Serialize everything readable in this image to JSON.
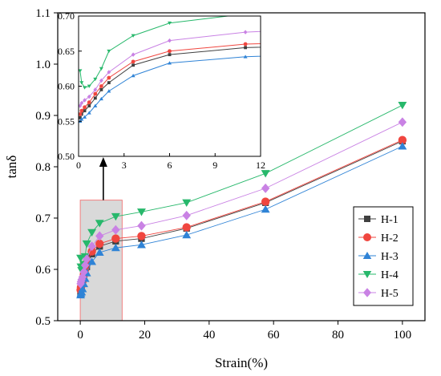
{
  "chart_data": [
    {
      "type": "line",
      "xlabel": "Strain(%)",
      "ylabel": "tanδ",
      "xlim": [
        -7,
        107
      ],
      "ylim": [
        0.5,
        1.1
      ],
      "xticks": [
        "0",
        "20",
        "40",
        "60",
        "80",
        "100"
      ],
      "yticks": [
        "0.5",
        "0.6",
        "0.7",
        "0.8",
        "0.9",
        "1.0",
        "1.1"
      ],
      "legend": "right",
      "grid": false,
      "series": [
        {
          "name": "H-1",
          "color": "#404040",
          "marker": "square",
          "x": [
            0.1,
            0.2,
            0.4,
            0.7,
            1.1,
            1.5,
            2.0,
            3.6,
            6.0,
            11.0,
            19.0,
            33.0,
            57.5,
            100.0
          ],
          "y": [
            0.555,
            0.56,
            0.565,
            0.572,
            0.583,
            0.595,
            0.605,
            0.63,
            0.645,
            0.655,
            0.66,
            0.68,
            0.73,
            0.85
          ]
        },
        {
          "name": "H-2",
          "color": "#f0463f",
          "marker": "circle",
          "x": [
            0.1,
            0.2,
            0.4,
            0.7,
            1.1,
            1.5,
            2.0,
            3.6,
            6.0,
            11.0,
            19.0,
            33.0,
            57.5,
            100.0
          ],
          "y": [
            0.56,
            0.565,
            0.57,
            0.577,
            0.589,
            0.6,
            0.612,
            0.635,
            0.65,
            0.66,
            0.665,
            0.682,
            0.732,
            0.852
          ]
        },
        {
          "name": "H-3",
          "color": "#2f83d6",
          "marker": "triangle-up",
          "x": [
            0.1,
            0.2,
            0.4,
            0.7,
            1.1,
            1.5,
            2.0,
            3.6,
            6.0,
            11.0,
            19.0,
            33.0,
            57.5,
            100.0
          ],
          "y": [
            0.55,
            0.553,
            0.556,
            0.562,
            0.572,
            0.582,
            0.593,
            0.615,
            0.633,
            0.642,
            0.648,
            0.667,
            0.717,
            0.84
          ]
        },
        {
          "name": "H-4",
          "color": "#27b86b",
          "marker": "triangle-down",
          "x": [
            0.1,
            0.2,
            0.4,
            0.7,
            1.1,
            1.5,
            2.0,
            3.6,
            6.0,
            11.0,
            19.0,
            33.0,
            57.5,
            100.0
          ],
          "y": [
            0.622,
            0.605,
            0.598,
            0.6,
            0.61,
            0.625,
            0.65,
            0.672,
            0.69,
            0.703,
            0.712,
            0.73,
            0.787,
            0.92
          ]
        },
        {
          "name": "H-5",
          "color": "#c982e4",
          "marker": "diamond",
          "x": [
            0.1,
            0.2,
            0.4,
            0.7,
            1.1,
            1.5,
            2.0,
            3.6,
            6.0,
            11.0,
            19.0,
            33.0,
            57.5,
            100.0
          ],
          "y": [
            0.572,
            0.576,
            0.58,
            0.585,
            0.595,
            0.608,
            0.62,
            0.645,
            0.665,
            0.677,
            0.685,
            0.705,
            0.758,
            0.887
          ]
        }
      ]
    },
    {
      "type": "line",
      "xlim": [
        0,
        12
      ],
      "ylim": [
        0.5,
        0.7
      ],
      "xticks": [
        "0",
        "3",
        "6",
        "9",
        "12"
      ],
      "yticks": [
        "0.50",
        "0.55",
        "0.60",
        "0.65",
        "0.70"
      ],
      "series_ref": "same as main chart",
      "series": [
        {
          "name": "H-1",
          "color": "#404040",
          "marker": "square"
        },
        {
          "name": "H-2",
          "color": "#f0463f",
          "marker": "circle"
        },
        {
          "name": "H-3",
          "color": "#2f83d6",
          "marker": "triangle-up"
        },
        {
          "name": "H-4",
          "color": "#27b86b",
          "marker": "triangle-down"
        },
        {
          "name": "H-5",
          "color": "#c982e4",
          "marker": "diamond"
        }
      ]
    }
  ],
  "zoom_region": {
    "fill": "#d9d9d9",
    "stroke": "#f08080",
    "x_range": [
      0,
      13
    ],
    "y_range": [
      0.5,
      0.735
    ]
  }
}
